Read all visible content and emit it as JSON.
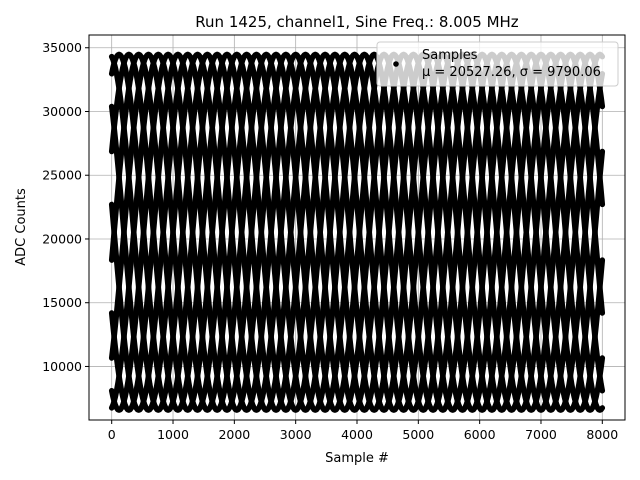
{
  "chart_data": {
    "type": "scatter",
    "title": "Run 1425, channel1, Sine Freq.: 8.005 MHz",
    "xlabel": "Sample #",
    "ylabel": "ADC Counts",
    "xlim": [
      -370,
      8370
    ],
    "ylim": [
      5800,
      36000
    ],
    "xticks": [
      0,
      1000,
      2000,
      3000,
      4000,
      5000,
      6000,
      7000,
      8000
    ],
    "yticks": [
      10000,
      15000,
      20000,
      25000,
      30000,
      35000
    ],
    "grid": true,
    "legend": {
      "placement": "top-right",
      "title": "Samples",
      "stats_text": "μ = 20527.26, σ = 9790.06"
    },
    "series": [
      {
        "name": "Samples",
        "color": "#000000",
        "sine_model": {
          "offset": 20527,
          "amplitude": 13950,
          "period_samples": 1600,
          "phases_deg_at_x0": [
            99,
            135,
            171,
            207,
            243,
            279,
            315,
            351,
            27,
            63
          ],
          "x_range": [
            0,
            8000
          ]
        }
      }
    ]
  }
}
